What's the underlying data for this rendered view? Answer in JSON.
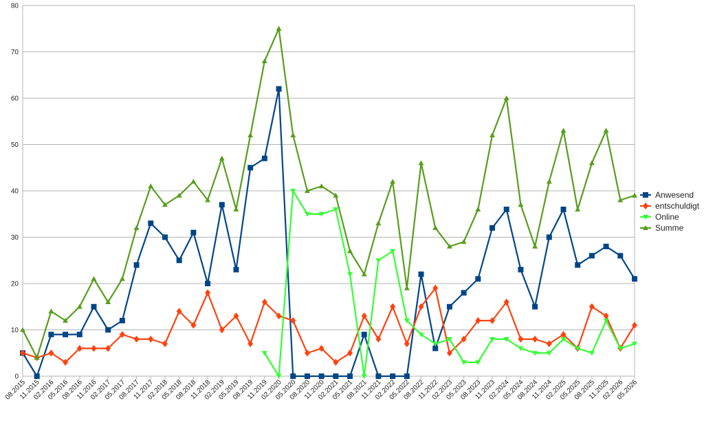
{
  "chart_data": {
    "type": "line",
    "title": "",
    "xlabel": "",
    "ylabel": "",
    "ylim": [
      0,
      80
    ],
    "yticks": [
      0,
      10,
      20,
      30,
      40,
      50,
      60,
      70,
      80
    ],
    "grid": "horizontal",
    "legend_position": "right",
    "categories": [
      "08.2015",
      "11.2015",
      "02.2016",
      "05.2016",
      "08.2016",
      "11.2016",
      "02.2017",
      "05.2017",
      "08.2017",
      "11.2017",
      "02.2018",
      "05.2018",
      "08.2018",
      "11.2018",
      "02.2019",
      "05.2019",
      "08.2019",
      "11.2019",
      "02.2020",
      "05.2020",
      "08.2020",
      "11.2020",
      "02.2021",
      "05.2021",
      "08.2021",
      "11.2021",
      "02.2022",
      "05.2022",
      "08.2022",
      "11.2022",
      "02.2023",
      "05.2023",
      "08.2023",
      "11.2023",
      "02.2024",
      "05.2024",
      "08.2024",
      "11.2024",
      "02.2025",
      "05.2025",
      "08.2025",
      "11.2025",
      "02.2026",
      "05.2026"
    ],
    "series": [
      {
        "name": "Anwesend",
        "color": "#004586",
        "marker": "square",
        "values": [
          5,
          0,
          9,
          9,
          9,
          15,
          10,
          12,
          24,
          33,
          30,
          25,
          31,
          20,
          37,
          23,
          45,
          47,
          62,
          0,
          0,
          0,
          0,
          0,
          9,
          0,
          0,
          0,
          22,
          6,
          15,
          18,
          21,
          32,
          36,
          23,
          15,
          30,
          36,
          24,
          26,
          28,
          26,
          21
        ]
      },
      {
        "name": "entschuldigt",
        "color": "#ff420e",
        "marker": "diamond",
        "values": [
          5,
          4,
          5,
          3,
          6,
          6,
          6,
          9,
          8,
          8,
          7,
          14,
          11,
          18,
          10,
          13,
          7,
          16,
          13,
          12,
          5,
          6,
          3,
          5,
          13,
          8,
          15,
          7,
          15,
          19,
          5,
          8,
          12,
          12,
          16,
          8,
          8,
          7,
          9,
          6,
          15,
          13,
          6,
          11
        ]
      },
      {
        "name": "Online",
        "color": "#33ff33",
        "marker": "triangle-down",
        "values": [
          null,
          null,
          null,
          null,
          null,
          null,
          null,
          null,
          null,
          null,
          null,
          null,
          null,
          null,
          null,
          null,
          null,
          5,
          0,
          40,
          35,
          35,
          36,
          22,
          0,
          25,
          27,
          12,
          9,
          7,
          8,
          3,
          3,
          8,
          8,
          6,
          5,
          5,
          8,
          6,
          5,
          12,
          6,
          7
        ]
      },
      {
        "name": "Summe",
        "color": "#579d1c",
        "marker": "triangle-up",
        "values": [
          10,
          4,
          14,
          12,
          15,
          21,
          16,
          21,
          32,
          41,
          37,
          39,
          42,
          38,
          47,
          36,
          52,
          68,
          75,
          52,
          40,
          41,
          39,
          27,
          22,
          33,
          42,
          19,
          46,
          32,
          28,
          29,
          36,
          52,
          60,
          37,
          28,
          42,
          53,
          36,
          46,
          53,
          38,
          39
        ]
      }
    ]
  }
}
